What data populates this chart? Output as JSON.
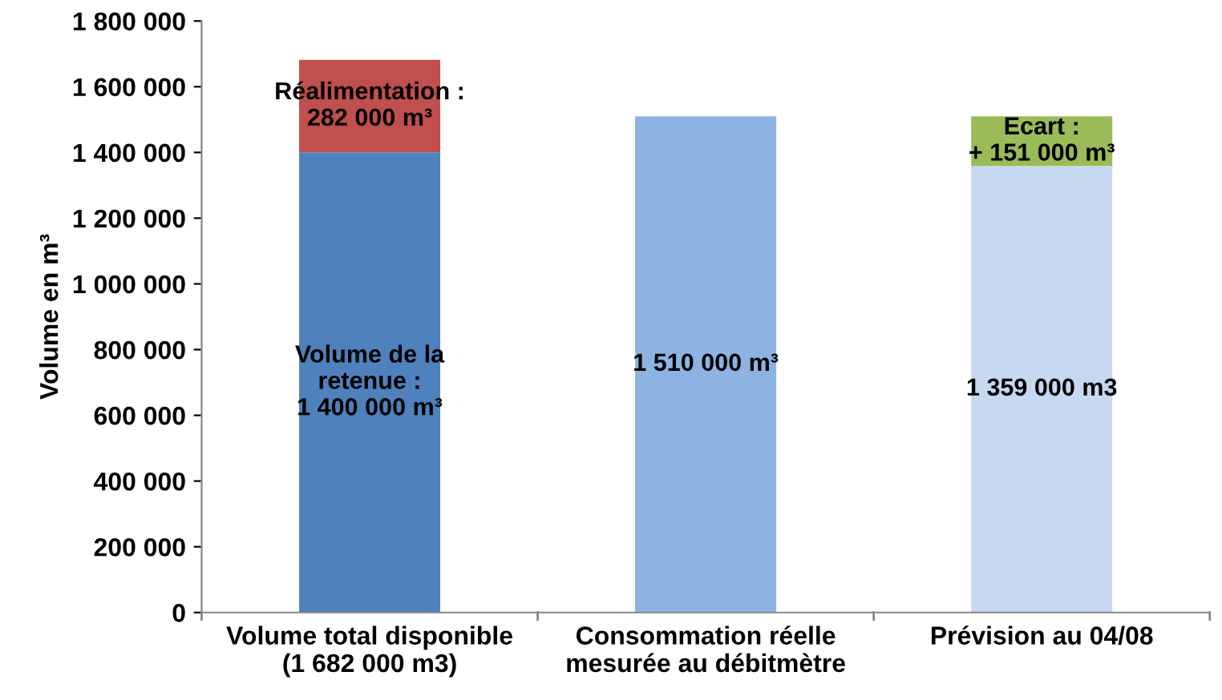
{
  "chart_data": {
    "type": "bar",
    "stacked": true,
    "ylabel": "Volume en m³",
    "categories": [
      "Volume total disponible\n(1 682 000 m3)",
      "Consommation réelle\nmesurée au débitmètre",
      "Prévision au 04/08"
    ],
    "series": [
      {
        "colors": [
          "#4f81bd",
          "#8db3e2",
          "#c6d9f1"
        ],
        "values": [
          1400000,
          1510000,
          1359000
        ],
        "value_labels": [
          "Volume de la\nretenue :\n1 400 000 m³",
          "1 510 000 m³",
          "1 359 000 m3"
        ]
      },
      {
        "colors": [
          "#c0504d",
          null,
          "#9bbb59"
        ],
        "values": [
          282000,
          null,
          151000
        ],
        "value_labels": [
          "Réalimentation :\n282 000 m³",
          null,
          "Ecart :\n+ 151 000 m³"
        ]
      }
    ],
    "ylim": [
      0,
      1800000
    ],
    "yticks": [
      0,
      {
        "value": 200000,
        "label": "200 000"
      },
      {
        "value": 400000,
        "label": "400 000"
      },
      {
        "value": 600000,
        "label": "600 000"
      },
      {
        "value": 800000,
        "label": "800 000"
      },
      {
        "value": 1000000,
        "label": "1 000 000"
      },
      {
        "value": 1200000,
        "label": "1 200 000"
      },
      {
        "value": 1400000,
        "label": "1 400 000"
      },
      {
        "value": 1600000,
        "label": "1 600 000"
      },
      {
        "value": 1800000,
        "label": "1 800 000"
      }
    ],
    "grid": false,
    "legend": false
  }
}
